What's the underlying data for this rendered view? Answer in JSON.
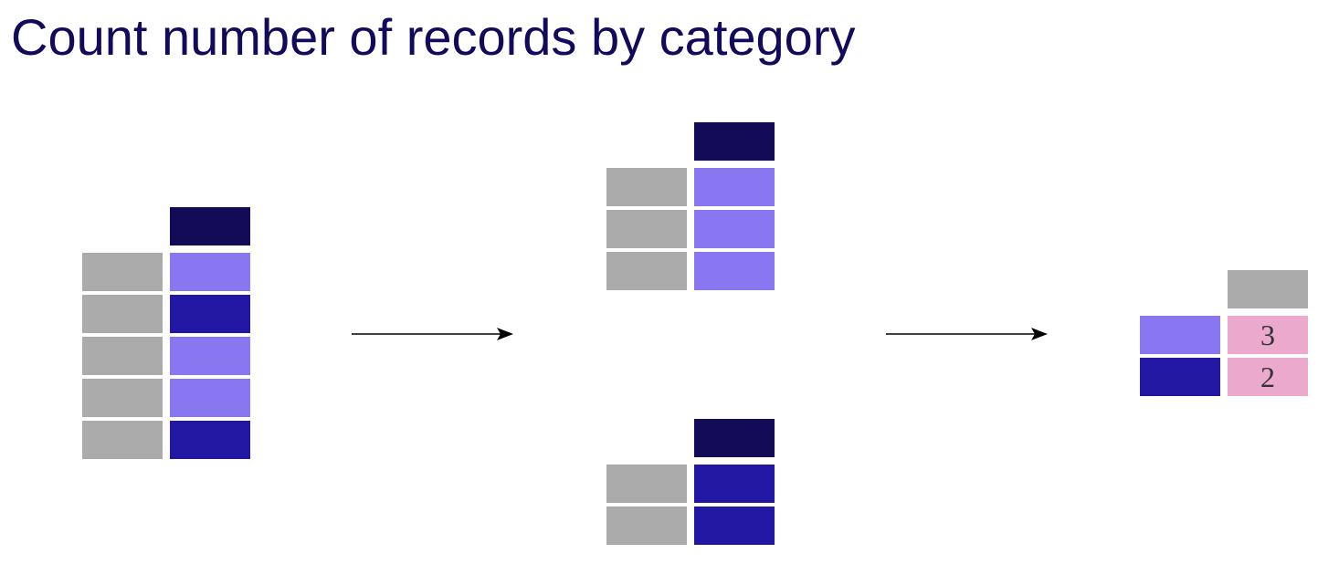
{
  "title": "Count number of records by category",
  "colors": {
    "gray": "#ababab",
    "header": "#140b58",
    "light_purple": "#8976f1",
    "dark_blue": "#2217a2",
    "pink": "#ebaacd",
    "title_text": "#120a5a"
  },
  "input_table": {
    "header_color": "#140b58",
    "row_categories": [
      "light_purple",
      "dark_blue",
      "light_purple",
      "light_purple",
      "dark_blue"
    ]
  },
  "group_light_purple": {
    "header_color": "#140b58",
    "row_count": 3
  },
  "group_dark_blue": {
    "header_color": "#140b58",
    "row_count": 2
  },
  "result_table": {
    "header_color": "#ababab",
    "rows": [
      {
        "category": "light_purple",
        "count": "3"
      },
      {
        "category": "dark_blue",
        "count": "2"
      }
    ]
  },
  "arrows": [
    {
      "name": "split-arrow-icon"
    },
    {
      "name": "combine-arrow-icon"
    }
  ]
}
